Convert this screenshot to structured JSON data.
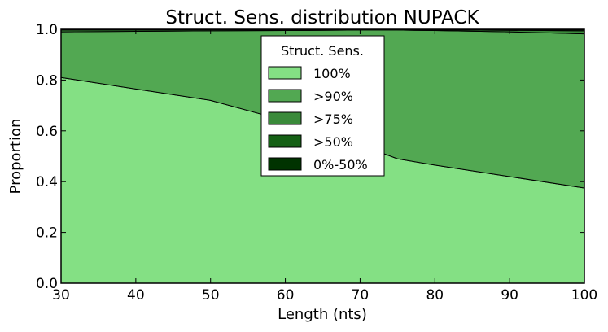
{
  "chart_data": {
    "type": "area",
    "title": "Struct. Sens. distribution NUPACK",
    "xlabel": "Length (nts)",
    "ylabel": "Proportion",
    "xlim": [
      30,
      100
    ],
    "ylim": [
      0.0,
      1.0
    ],
    "xticks": [
      "30",
      "40",
      "50",
      "60",
      "70",
      "80",
      "90",
      "100"
    ],
    "yticks": [
      "0.0",
      "0.2",
      "0.4",
      "0.6",
      "0.8",
      "1.0"
    ],
    "grid": false,
    "stacked": true,
    "x": [
      30,
      40,
      50,
      60,
      70,
      75,
      80,
      90,
      100
    ],
    "series": [
      {
        "name": "100%",
        "color": "#84e084",
        "values": [
          0.81,
          0.765,
          0.72,
          0.64,
          0.545,
          0.49,
          0.465,
          0.42,
          0.375
        ]
      },
      {
        "name": ">90%",
        "color": "#52a852",
        "values": [
          0.18,
          0.227,
          0.274,
          0.355,
          0.452,
          0.507,
          0.53,
          0.57,
          0.607
        ]
      },
      {
        "name": ">75%",
        "color": "#3a8a3a",
        "values": [
          0.007,
          0.005,
          0.004,
          0.003,
          0.002,
          0.002,
          0.003,
          0.006,
          0.012
        ]
      },
      {
        "name": ">50%",
        "color": "#156015",
        "values": [
          0.002,
          0.002,
          0.001,
          0.001,
          0.001,
          0.001,
          0.001,
          0.002,
          0.004
        ]
      },
      {
        "name": "0%-50%",
        "color": "#003300",
        "values": [
          0.001,
          0.001,
          0.001,
          0.001,
          0.0,
          0.0,
          0.001,
          0.002,
          0.002
        ]
      }
    ],
    "legend": {
      "title": "Struct. Sens.",
      "position": "upper-center"
    }
  }
}
